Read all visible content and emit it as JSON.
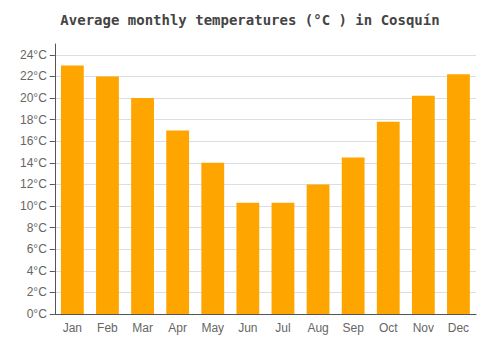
{
  "chart_data": {
    "type": "bar",
    "title": "Average monthly temperatures (°C ) in Cosquín",
    "categories": [
      "Jan",
      "Feb",
      "Mar",
      "Apr",
      "May",
      "Jun",
      "Jul",
      "Aug",
      "Sep",
      "Oct",
      "Nov",
      "Dec"
    ],
    "values": [
      23,
      22,
      20,
      17,
      14,
      10.3,
      10.3,
      12,
      14.5,
      17.8,
      20.2,
      22.2
    ],
    "color": "#FFA500",
    "ylim": [
      0,
      25
    ],
    "yticks": [
      {
        "value": 0,
        "label": "0°C"
      },
      {
        "value": 2,
        "label": "2°C"
      },
      {
        "value": 4,
        "label": "4°C"
      },
      {
        "value": 6,
        "label": "6°C"
      },
      {
        "value": 8,
        "label": "8°C"
      },
      {
        "value": 10,
        "label": "10°C"
      },
      {
        "value": 12,
        "label": "12°C"
      },
      {
        "value": 14,
        "label": "14°C"
      },
      {
        "value": 16,
        "label": "16°C"
      },
      {
        "value": 18,
        "label": "18°C"
      },
      {
        "value": 20,
        "label": "20°C"
      },
      {
        "value": 22,
        "label": "22°C"
      },
      {
        "value": 24,
        "label": "24°C"
      }
    ],
    "grid": true
  }
}
